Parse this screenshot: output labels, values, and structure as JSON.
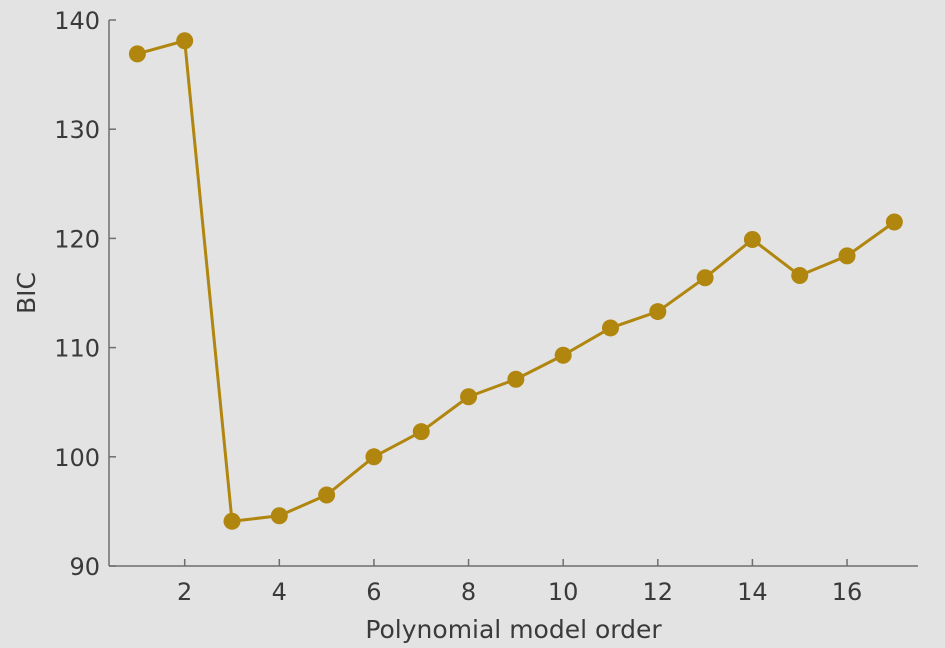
{
  "chart_data": {
    "type": "line",
    "title": "",
    "xlabel": "Polynomial model order",
    "ylabel": "BIC",
    "x": [
      1,
      2,
      3,
      4,
      5,
      6,
      7,
      8,
      9,
      10,
      11,
      12,
      13,
      14,
      15,
      16,
      17
    ],
    "xlim": [
      0.4,
      17.5
    ],
    "ylim": [
      90,
      140
    ],
    "xticks": [
      2,
      4,
      6,
      8,
      10,
      12,
      14,
      16
    ],
    "yticks": [
      90,
      100,
      110,
      120,
      130,
      140
    ],
    "grid": false,
    "series": [
      {
        "values": [
          136.9,
          138.1,
          94.1,
          94.6,
          96.5,
          100.0,
          102.3,
          105.5,
          107.1,
          109.3,
          111.8,
          113.3,
          116.4,
          119.9,
          116.6,
          118.4,
          121.5
        ],
        "color": "#b0860f",
        "marker": "circle"
      }
    ]
  }
}
